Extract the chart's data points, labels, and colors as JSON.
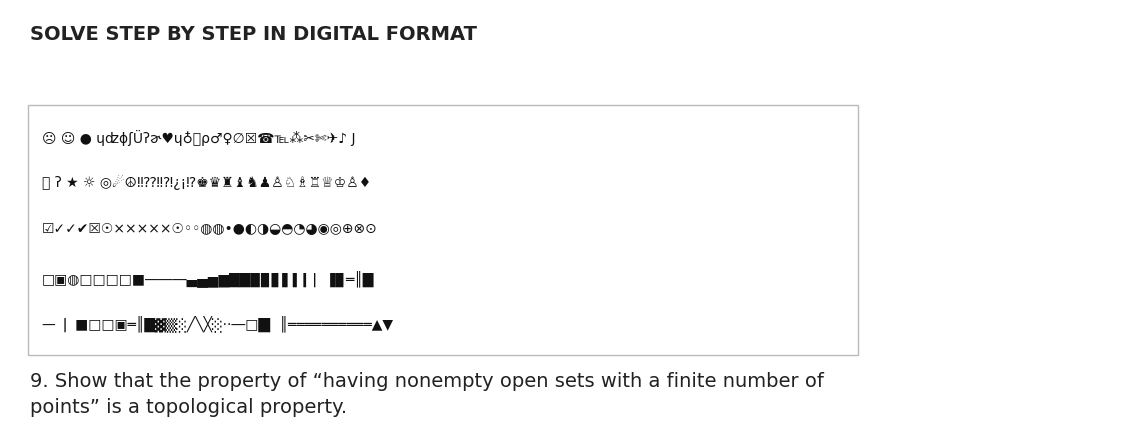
{
  "title": "SOLVE STEP BY STEP IN DIGITAL FORMAT",
  "title_fontsize": 14,
  "background_color": "#ffffff",
  "box_edge_color": "#bbbbbb",
  "symbol_row1": "☹ ☺ ● ɥʣɸʃÜʔɚ♥ɥ♁键ρ♂♀∅☒☎℡⁂✂✄✈♪ J",
  "symbol_row2": "Ⓐ ʔ ★ ☼ ◎☄☮‼⁇‼⁈¿¡⁉♚♛♜♝♞♟♙♘♗♖♕♔♙♦",
  "symbol_row3": "☑✓✓✔☒☉×××××☉◦◦◍◍•●◐◑◒◓◔◕◉◎⊕⊗⊙",
  "symbol_row4": "□▣◍□□□□■―――▄▅▆▇██▉▊▋▌▍▎▏▐▊═║█",
  "symbol_row5": "—  ▏■□□▣═║█▓▒░╱╲╳░··―□█▏║══════════▲▼",
  "main_text_line1": "9. Show that the property of “having nonempty open sets with a finite number of",
  "main_text_line2": "points” is a topological property.",
  "main_text_fontsize": 14,
  "text_color": "#222222"
}
